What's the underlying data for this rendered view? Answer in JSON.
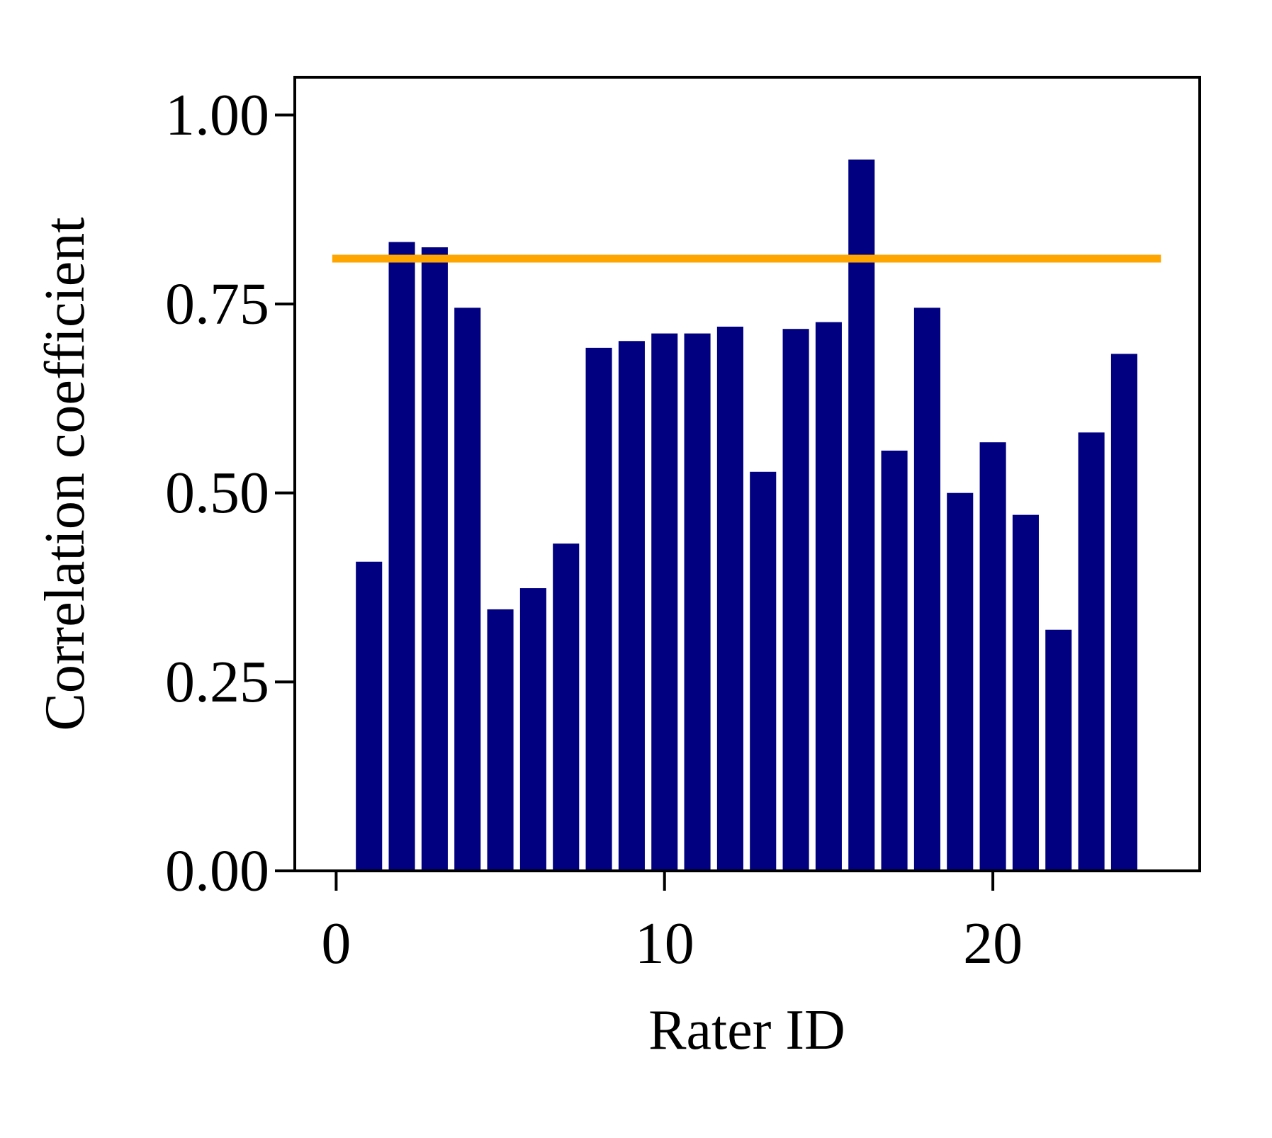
{
  "chart_data": {
    "type": "bar",
    "xlabel": "Rater ID",
    "ylabel": "Correlation coefficient",
    "x": [
      1,
      2,
      3,
      4,
      5,
      6,
      7,
      8,
      9,
      10,
      11,
      12,
      13,
      14,
      15,
      16,
      17,
      18,
      19,
      20,
      21,
      22,
      23,
      24
    ],
    "values": [
      0.409,
      0.832,
      0.825,
      0.745,
      0.346,
      0.374,
      0.433,
      0.692,
      0.701,
      0.711,
      0.711,
      0.72,
      0.528,
      0.717,
      0.726,
      0.941,
      0.556,
      0.745,
      0.5,
      0.567,
      0.471,
      0.319,
      0.58,
      0.684
    ],
    "color": "#000080",
    "hline": {
      "value": 0.81,
      "xmin": 0,
      "xmax": 25,
      "color": "#ffa500"
    },
    "xlim": [
      -1.26,
      26.3
    ],
    "xticks": [
      0,
      10,
      20
    ],
    "ylim": [
      0,
      1.05
    ],
    "yticks": [
      {
        "value": 0,
        "label": "0.00"
      },
      {
        "value": 0.25,
        "label": "0.25"
      },
      {
        "value": 0.5,
        "label": "0.50"
      },
      {
        "value": 0.75,
        "label": "0.75"
      },
      {
        "value": 1,
        "label": "1.00"
      }
    ],
    "grid": false
  }
}
